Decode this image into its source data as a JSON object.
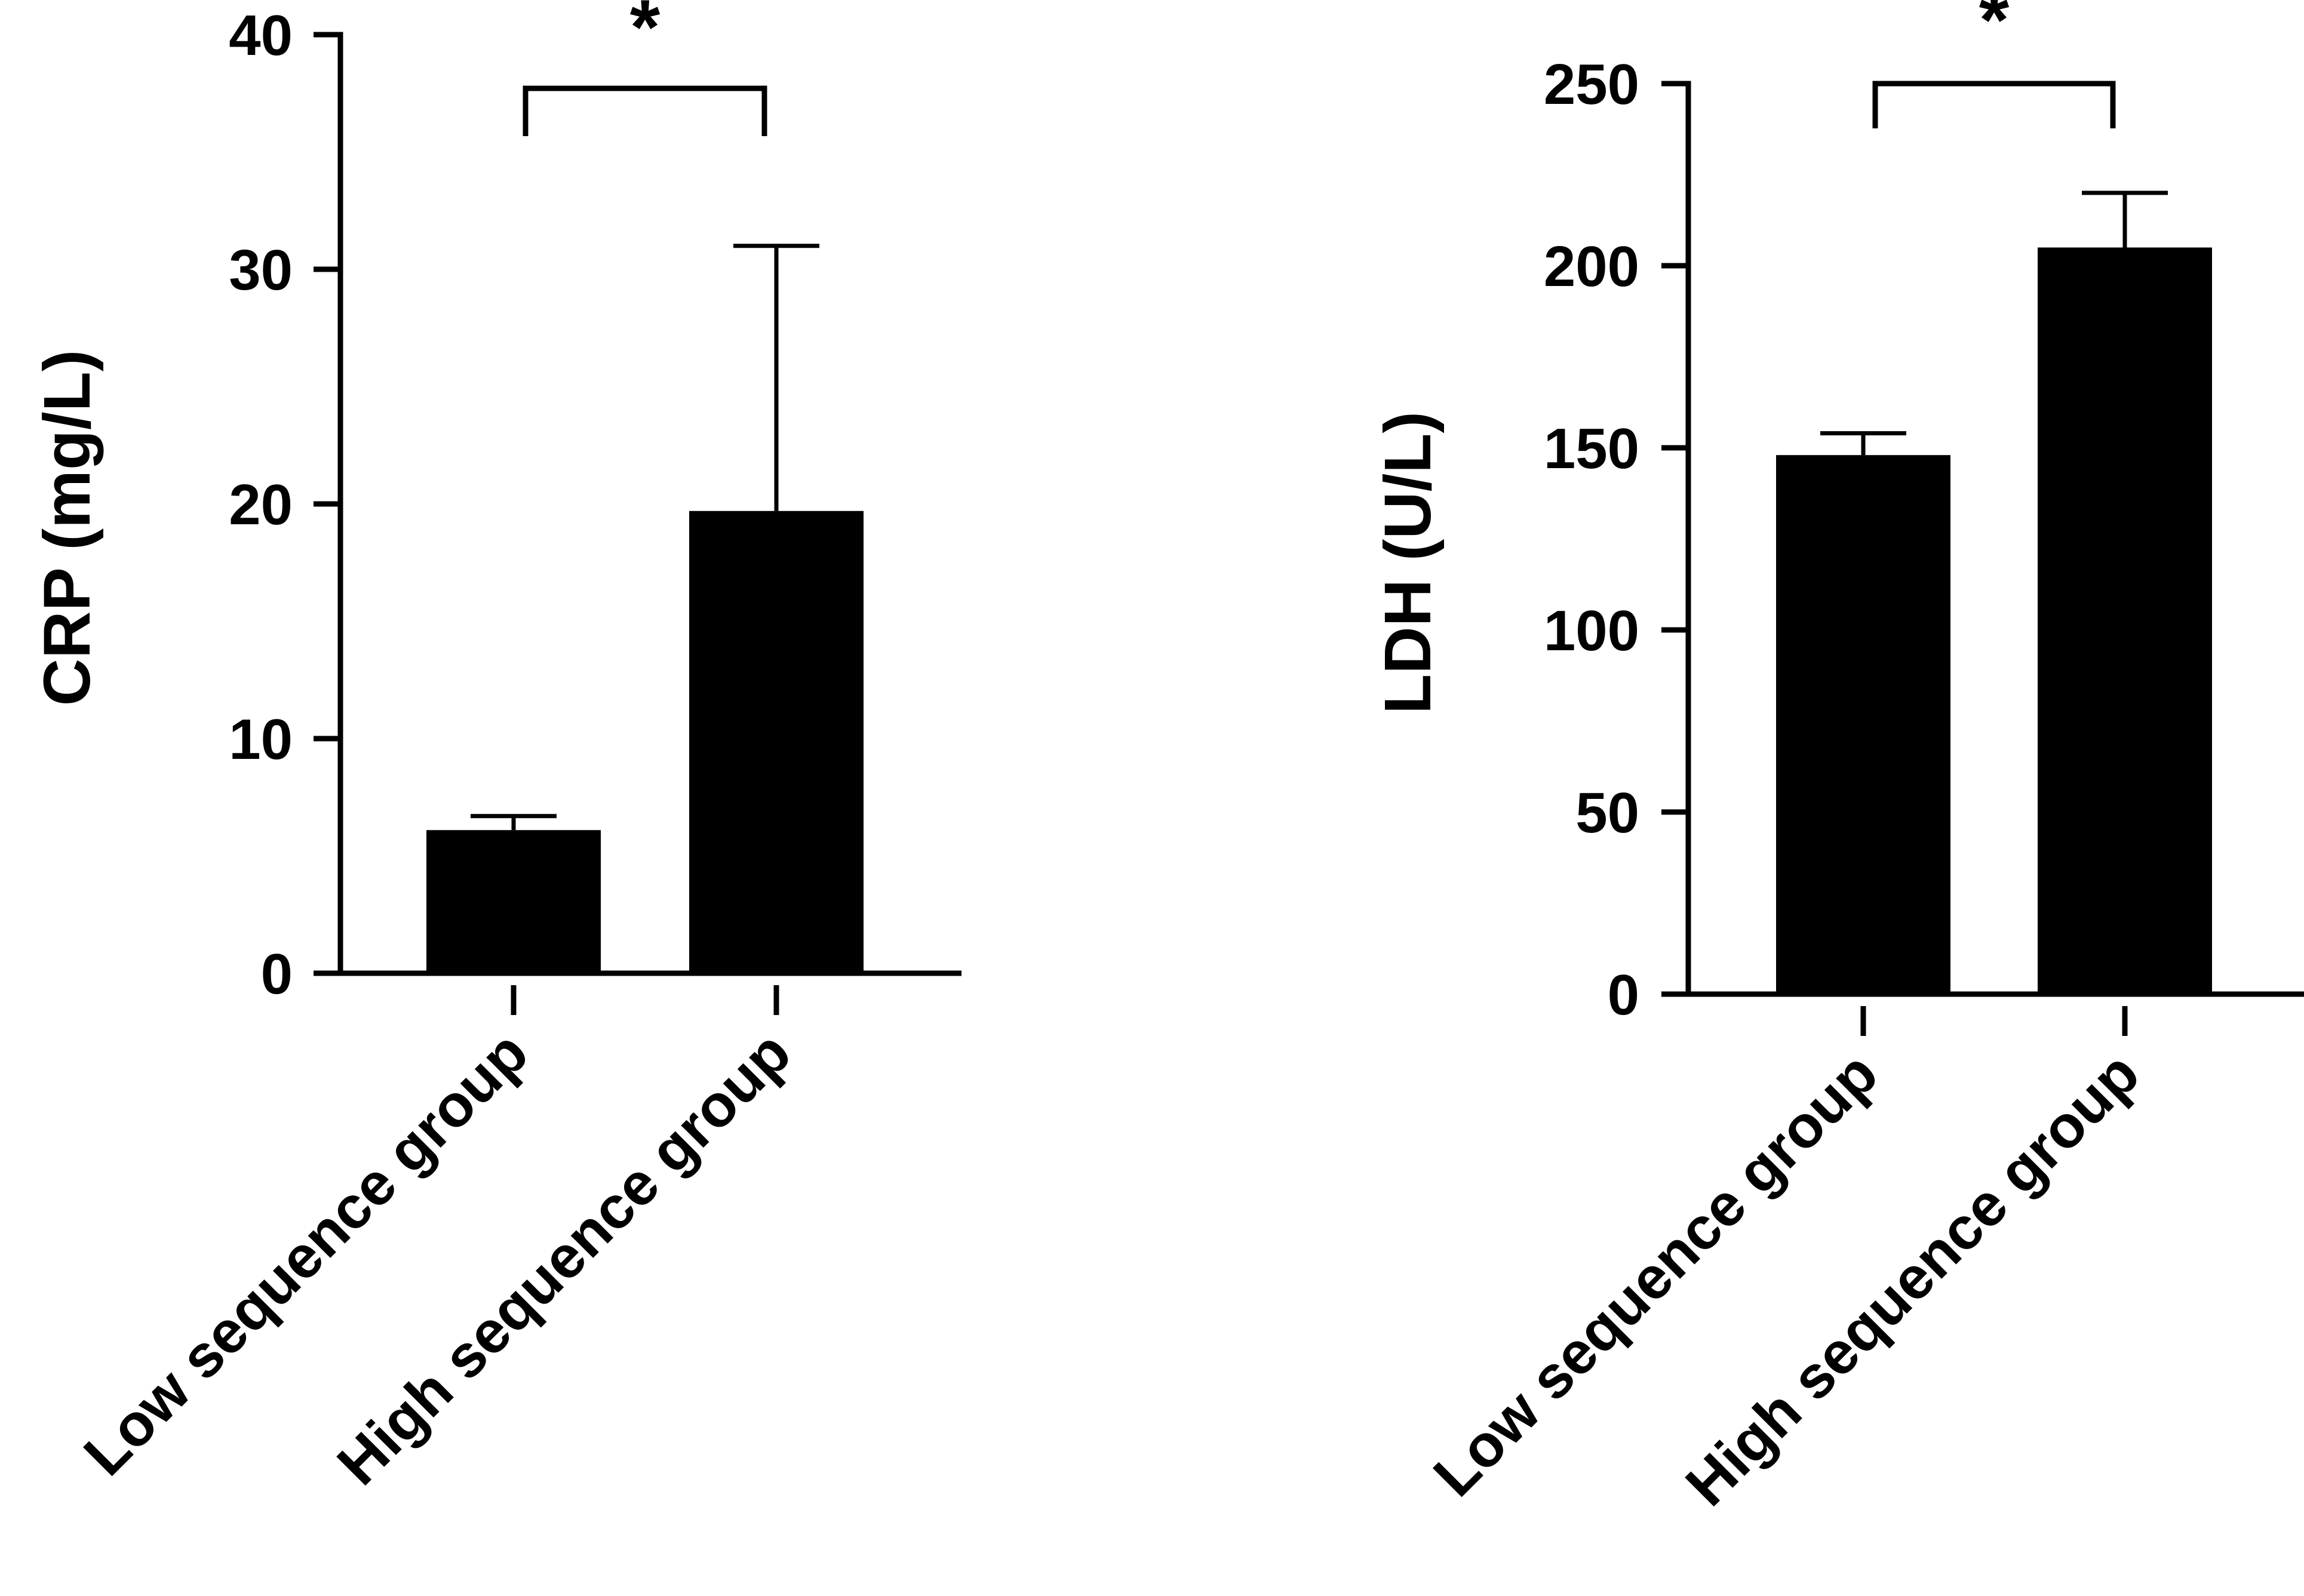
{
  "chart_data": [
    {
      "type": "bar",
      "ylabel": "CRP (mg/L)",
      "categories": [
        "Low sequence group",
        "High sequence group"
      ],
      "values": [
        6.1,
        19.7
      ],
      "error_upper": [
        6.7,
        31.0
      ],
      "ylim": [
        0,
        40
      ],
      "yticks": [
        "0",
        "10",
        "20",
        "30",
        "40"
      ],
      "ytick_values": [
        0,
        10,
        20,
        30,
        40
      ],
      "significance": {
        "label": "*",
        "between": [
          0,
          1
        ]
      },
      "bar_color": "#000000"
    },
    {
      "type": "bar",
      "ylabel": "LDH (U/L)",
      "categories": [
        "Low sequence group",
        "High sequence group"
      ],
      "values": [
        148,
        205
      ],
      "error_upper": [
        154,
        220
      ],
      "ylim": [
        0,
        250
      ],
      "yticks": [
        "0",
        "50",
        "100",
        "150",
        "200",
        "250"
      ],
      "ytick_values": [
        0,
        50,
        100,
        150,
        200,
        250
      ],
      "significance": {
        "label": "*",
        "between": [
          0,
          1
        ]
      },
      "bar_color": "#000000"
    }
  ]
}
